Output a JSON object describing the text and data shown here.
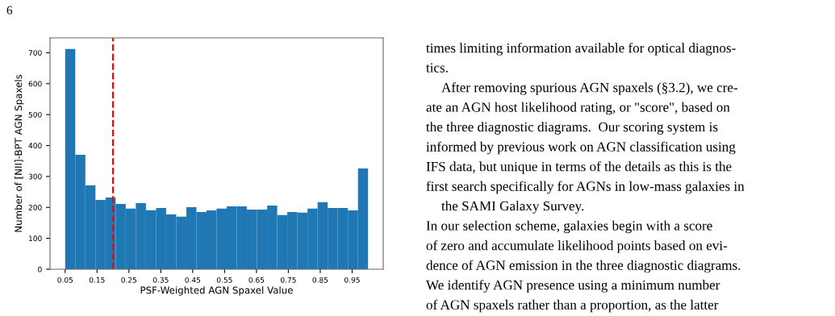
{
  "chart_data": {
    "type": "histogram",
    "xlabel": "PSF-Weighted AGN Spaxel Value",
    "ylabel": "Number of [NII]-BPT AGN Spaxels",
    "bins": [
      0.05,
      0.08167,
      0.11333,
      0.145,
      0.17667,
      0.20833,
      0.24,
      0.27167,
      0.30333,
      0.335,
      0.36667,
      0.39833,
      0.43,
      0.46167,
      0.49333,
      0.525,
      0.55667,
      0.58833,
      0.62,
      0.65167,
      0.68333,
      0.715,
      0.74667,
      0.77833,
      0.81,
      0.84167,
      0.87333,
      0.905,
      0.93667,
      0.96833,
      1.0
    ],
    "values": [
      712,
      370,
      271,
      224,
      232,
      211,
      196,
      214,
      191,
      198,
      177,
      170,
      201,
      185,
      190,
      196,
      203,
      203,
      193,
      193,
      206,
      175,
      185,
      183,
      196,
      217,
      198,
      198,
      190,
      326
    ],
    "color": "#1f77b4",
    "xlim": [
      0.0025,
      1.0475
    ],
    "ylim": [
      0,
      748
    ],
    "xticks": [
      0.05,
      0.15,
      0.25,
      0.35,
      0.45,
      0.55,
      0.65,
      0.75,
      0.85,
      0.95
    ],
    "yticks": [
      0,
      100,
      200,
      300,
      400,
      500,
      600,
      700
    ],
    "ref_lines": [
      {
        "axis": "x",
        "value": 0.2,
        "color": "#ff0000",
        "line_style": "dashed"
      }
    ],
    "grid": false,
    "annotations": [
      "6",
      "times limiting information available for optical diagnos-",
      "tics.",
      "After removing spurious AGN spaxels (§3.2), we cre-",
      "ate an AGN host likelihood rating, or \"score\", based on",
      "the three diagnostic diagrams.  Our scoring system is",
      "informed by previous work on AGN classification using",
      "IFS data, but unique in terms of the details as this is the",
      "first search specifically for AGNs in low-mass galaxies in",
      "the SAMI Galaxy Survey.",
      "In our selection scheme, galaxies begin with a score",
      "of zero and accumulate likelihood points based on evi-",
      "dence of AGN emission in the three diagnostic diagrams.",
      "We identify AGN presence using a minimum number",
      "of AGN spaxels rather than a proportion, as the latter"
    ]
  }
}
